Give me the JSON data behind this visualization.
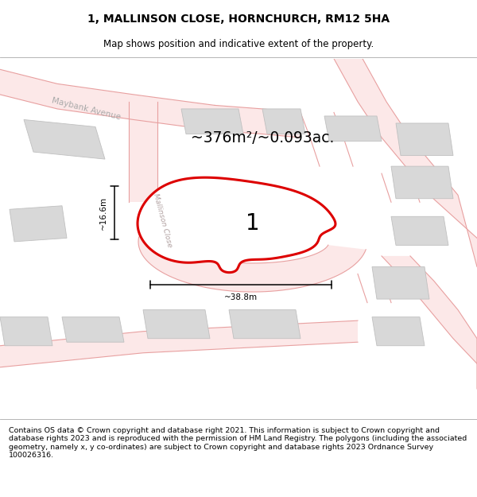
{
  "title": "1, MALLINSON CLOSE, HORNCHURCH, RM12 5HA",
  "subtitle": "Map shows position and indicative extent of the property.",
  "footer": "Contains OS data © Crown copyright and database right 2021. This information is subject to Crown copyright and database rights 2023 and is reproduced with the permission of HM Land Registry. The polygons (including the associated geometry, namely x, y co-ordinates) are subject to Crown copyright and database rights 2023 Ordnance Survey 100026316.",
  "area_text": "~376m²/~0.093ac.",
  "width_text": "~38.8m",
  "height_text": "~16.6m",
  "label": "1",
  "title_fontsize": 10,
  "subtitle_fontsize": 8.5,
  "footer_fontsize": 6.8,
  "road_outline_color": "#e8a0a0",
  "road_fill_color": "#fce8e8",
  "block_color": "#d8d8d8",
  "block_edge": "#c0c0c0",
  "property_fill": "#ffffff",
  "property_edge": "#dd0000",
  "map_bg": "#ffffff"
}
